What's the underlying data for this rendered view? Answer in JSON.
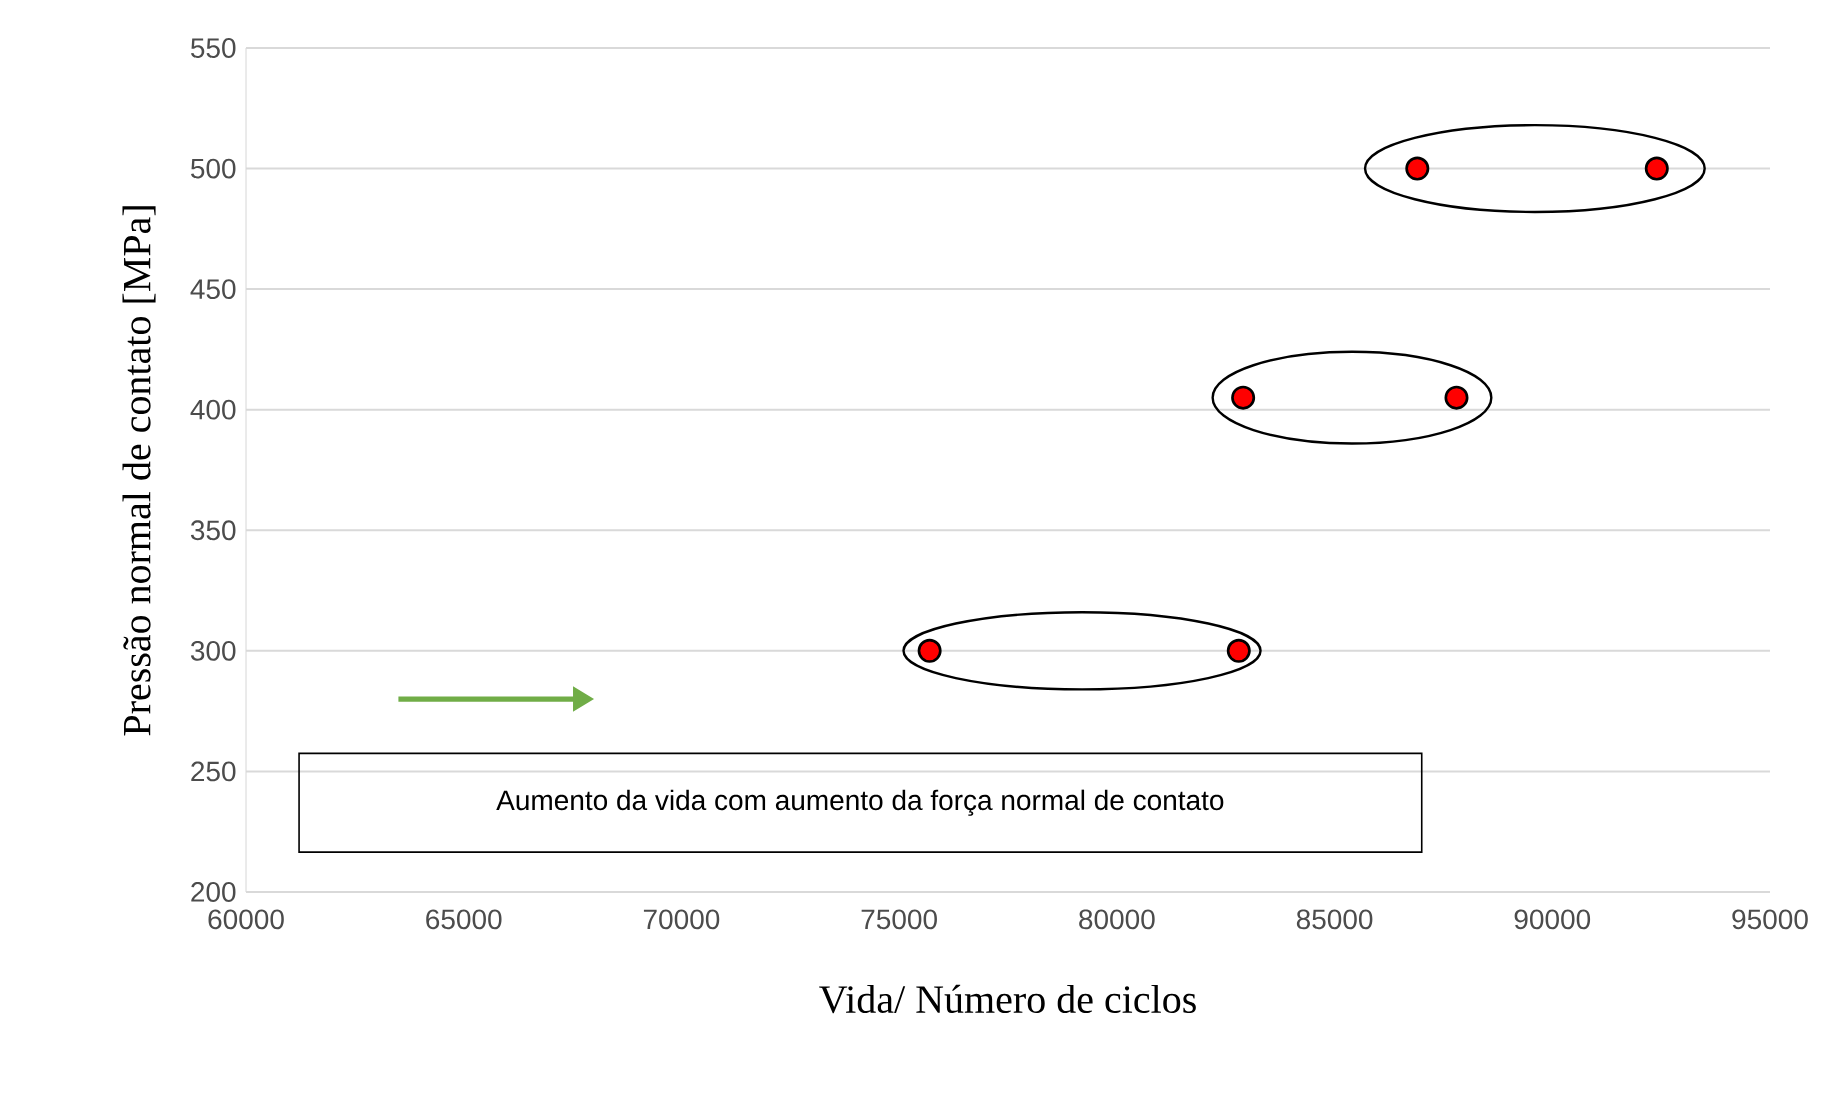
{
  "chart_data": {
    "type": "scatter",
    "xlabel": "Vida/ Número de ciclos",
    "ylabel": "Pressão normal de contato [MPa]",
    "x": [
      75700,
      82800,
      82900,
      87800,
      86900,
      92400
    ],
    "values": [
      300,
      300,
      405,
      405,
      500,
      500
    ],
    "color": "#ff0000",
    "marker": "circle",
    "xlim": [
      60000,
      95000
    ],
    "xticks": [
      60000,
      65000,
      70000,
      75000,
      80000,
      85000,
      90000,
      95000
    ],
    "ylim": [
      200,
      550
    ],
    "yticks": [
      200,
      250,
      300,
      350,
      400,
      450,
      500,
      550
    ],
    "grid": "y",
    "annotations": [
      "Aumento da vida com aumento da força normal de contato"
    ]
  }
}
